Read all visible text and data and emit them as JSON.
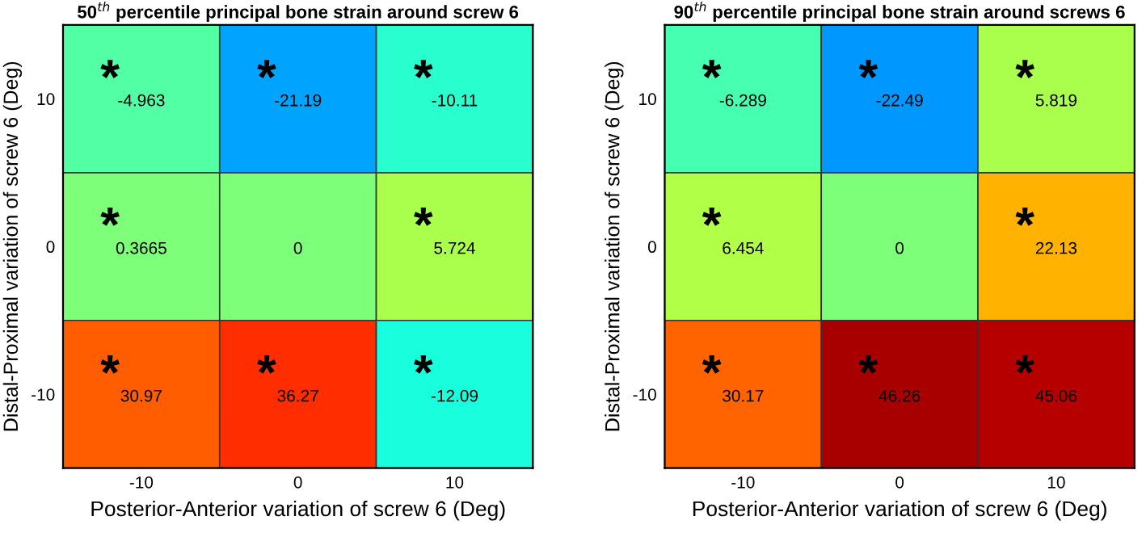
{
  "chart_data": [
    {
      "type": "heatmap",
      "title": "50$^{th}$ percentile principal bone strain around screw 6",
      "xlabel": "Posterior-Anterior variation of screw 6 (Deg)",
      "ylabel": "Distal-Proximal variation of screw 6 (Deg)",
      "categories": [
        "-10",
        "0",
        "10"
      ],
      "y_categories": [
        "10",
        "0",
        "-10"
      ],
      "cells": [
        [
          -4.963,
          -21.19,
          -10.11
        ],
        [
          0.3665,
          0,
          5.724
        ],
        [
          30.97,
          36.27,
          -12.09
        ]
      ],
      "cell_labels": [
        [
          "*\n-4.963",
          "*\n-21.19",
          "*\n-10.11"
        ],
        [
          "*\n0.3665",
          "0",
          "*\n5.724"
        ],
        [
          "*\n30.97",
          "*\n36.27",
          "*\n-12.09"
        ]
      ]
    },
    {
      "type": "heatmap",
      "title": "90$^{th}$ percentile principal bone strain around screws 6",
      "xlabel": "Posterior-Anterior variation of screw 6 (Deg)",
      "ylabel": "Distal-Proximal variation of screw 6 (Deg)",
      "categories": [
        "-10",
        "0",
        "10"
      ],
      "y_categories": [
        "10",
        "0",
        "-10"
      ],
      "cells": [
        [
          -6.289,
          -22.49,
          5.819
        ],
        [
          6.454,
          0,
          22.13
        ],
        [
          30.17,
          46.26,
          45.06
        ]
      ],
      "cell_labels": [
        [
          "*\n-6.289",
          "*\n-22.49",
          "*\n5.819"
        ],
        [
          "*\n6.454",
          "0",
          "*\n22.13"
        ],
        [
          "*\n30.17",
          "*\n46.26",
          "*\n45.06"
        ]
      ]
    }
  ]
}
